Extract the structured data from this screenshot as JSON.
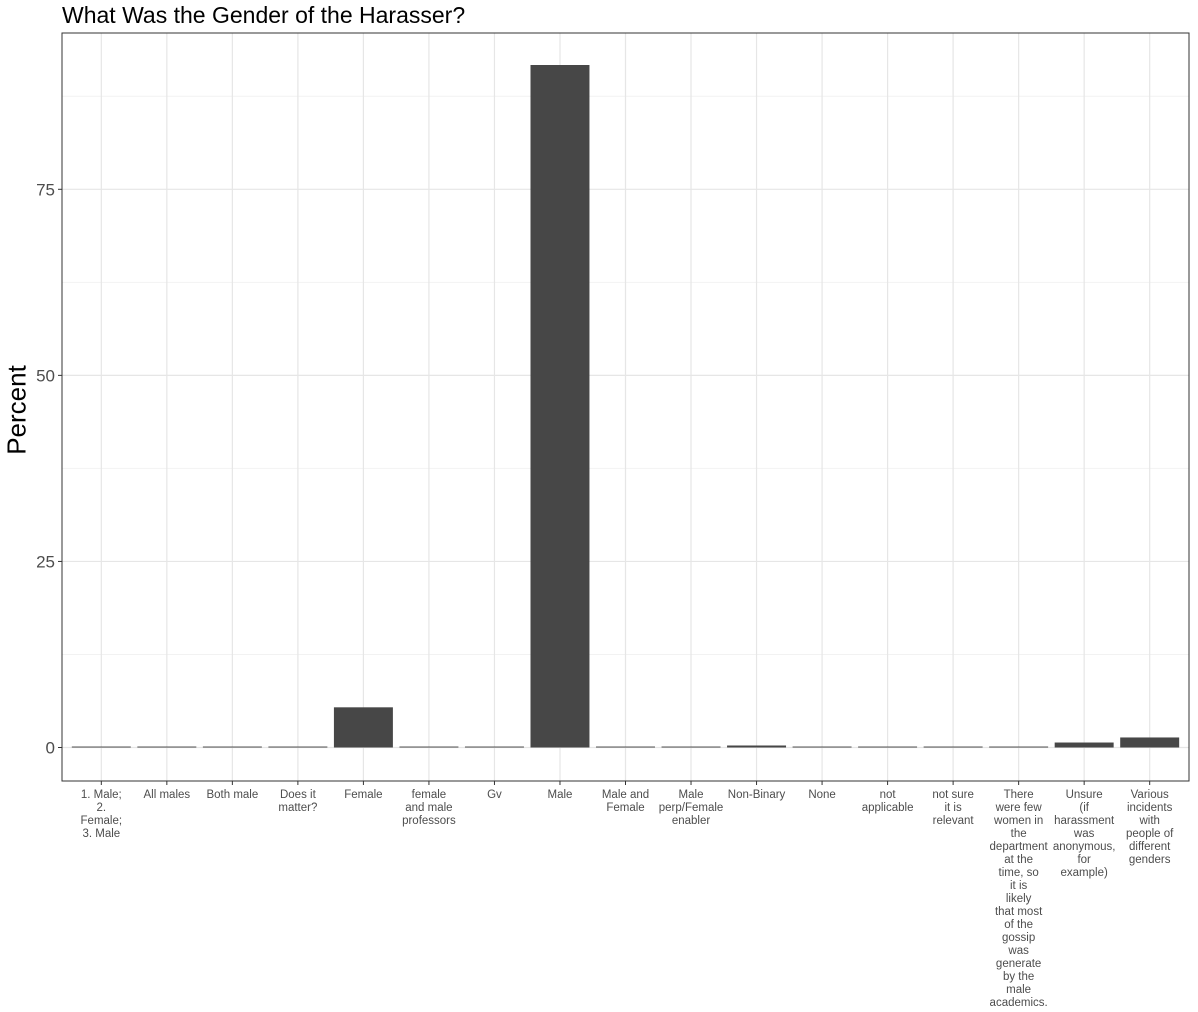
{
  "chart_data": {
    "type": "bar",
    "title": "What Was the Gender of the Harasser?",
    "xlabel": "",
    "ylabel": "Percent",
    "ylim": [
      -4.5,
      96
    ],
    "yticks": [
      0,
      25,
      50,
      75
    ],
    "grid": true,
    "bar_color": "#474747",
    "categories": [
      "1. Male; 2. Female; 3. Male",
      "All males",
      "Both male",
      "Does it matter?",
      "Female",
      "female and male professors",
      "Gv",
      "Male",
      "Male and Female",
      "Male perp/Female enabler",
      "Non-Binary",
      "None",
      "not applicable",
      "not sure it is relevant",
      "There were few women in the department at the time, so it is likely that most of the gossip was generate by the male academics.",
      "Unsure (if harassment was anonymous, for example)",
      "Various incidents with people of different genders"
    ],
    "category_label_lines": [
      [
        "1. Male;",
        "2.",
        "Female;",
        "3. Male"
      ],
      [
        "All males"
      ],
      [
        "Both male"
      ],
      [
        "Does it",
        "matter?"
      ],
      [
        "Female"
      ],
      [
        "female",
        "and male",
        "professors"
      ],
      [
        "Gv"
      ],
      [
        "Male"
      ],
      [
        "Male and",
        "Female"
      ],
      [
        "Male",
        "perp/Female",
        "enabler"
      ],
      [
        "Non-Binary"
      ],
      [
        "None"
      ],
      [
        "not",
        "applicable"
      ],
      [
        "not sure",
        "it is",
        "relevant"
      ],
      [
        "There",
        "were few",
        "women in",
        "the",
        "department",
        "at the",
        "time, so",
        "it is",
        "likely",
        "that most",
        "of the",
        "gossip",
        "was",
        "generate",
        "by the",
        "male",
        "academics."
      ],
      [
        "Unsure",
        "(if",
        "harassment",
        "was",
        "anonymous,",
        "for",
        "example)"
      ],
      [
        "Various",
        "incidents",
        "with",
        "people of",
        "different",
        "genders"
      ]
    ],
    "values": [
      0.13,
      0.13,
      0.13,
      0.13,
      5.4,
      0.13,
      0.13,
      91.7,
      0.13,
      0.13,
      0.27,
      0.13,
      0.13,
      0.13,
      0.13,
      0.67,
      1.35
    ]
  }
}
